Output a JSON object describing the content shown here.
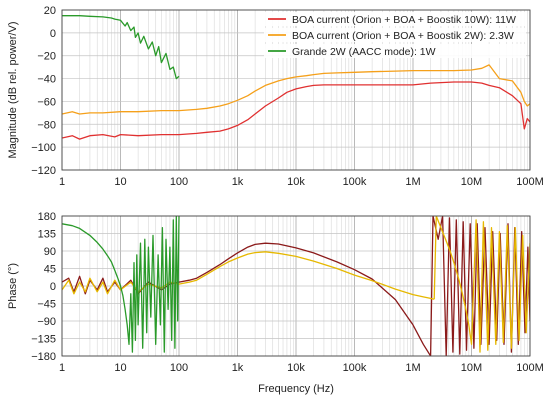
{
  "chart_data": [
    {
      "type": "line",
      "title": "",
      "xlabel": "",
      "ylabel": "Magnitude (dB rel. power/V)",
      "xscale": "log",
      "xlim": [
        1,
        100000000
      ],
      "ylim": [
        -120,
        20
      ],
      "xticks": [
        1,
        10,
        100,
        1000,
        10000,
        100000,
        1000000,
        10000000,
        100000000
      ],
      "xtick_labels": [
        "1",
        "10",
        "100",
        "1k",
        "10k",
        "100k",
        "1M",
        "10M",
        "100M"
      ],
      "yticks": [
        20,
        0,
        -20,
        -40,
        -60,
        -80,
        -100,
        -120
      ],
      "ytick_labels": [
        "20",
        "0",
        "−20",
        "−40",
        "−60",
        "−80",
        "−100",
        "−120"
      ],
      "grid": true,
      "legend_position": "top-right",
      "series": [
        {
          "name": "BOA current (Orion + BOA + Boostik 10W): 11W",
          "color": "#e03030",
          "x": [
            1,
            1.5,
            2,
            3,
            5,
            8,
            10,
            20,
            50,
            100,
            200,
            300,
            500,
            700,
            1000,
            1500,
            2000,
            3000,
            5000,
            7000,
            10000,
            15000,
            20000,
            30000,
            50000,
            100000,
            200000,
            500000,
            1000000,
            2000000,
            5000000,
            10000000,
            15000000,
            20000000,
            30000000,
            50000000,
            70000000,
            80000000,
            90000000,
            100000000
          ],
          "y": [
            -92,
            -90,
            -93,
            -90,
            -89,
            -91,
            -89,
            -90,
            -89,
            -89,
            -88,
            -87,
            -86,
            -84,
            -81,
            -76,
            -71,
            -64,
            -57,
            -52,
            -49,
            -47,
            -46,
            -45.5,
            -45.5,
            -45.5,
            -45.5,
            -45.5,
            -45.5,
            -44,
            -43,
            -43,
            -44,
            -46,
            -48,
            -55,
            -62,
            -84,
            -75,
            -78
          ]
        },
        {
          "name": "BOA current (Orion + BOA + Boostik 2W): 2.3W",
          "color": "#f5a01a",
          "x": [
            1,
            1.5,
            2,
            3,
            5,
            10,
            20,
            50,
            100,
            200,
            300,
            500,
            700,
            1000,
            1500,
            2000,
            3000,
            5000,
            7000,
            10000,
            15000,
            20000,
            30000,
            50000,
            100000,
            200000,
            500000,
            1000000,
            2000000,
            5000000,
            10000000,
            15000000,
            20000000,
            30000000,
            50000000,
            70000000,
            80000000,
            90000000,
            100000000
          ],
          "y": [
            -71,
            -69,
            -71,
            -70,
            -70,
            -69,
            -69,
            -68,
            -68,
            -67,
            -66,
            -64,
            -62,
            -59,
            -55,
            -51,
            -46,
            -42,
            -40,
            -38.5,
            -37.5,
            -36.5,
            -35.5,
            -35,
            -34.5,
            -34,
            -33.5,
            -33,
            -33,
            -33,
            -32.5,
            -31,
            -28,
            -40,
            -42,
            -52,
            -60,
            -64,
            -62
          ]
        },
        {
          "name": "Grande 2W (AACC mode): 1W",
          "color": "#2a9a2a",
          "x": [
            1,
            1.5,
            2,
            3,
            5,
            7,
            8,
            10,
            12,
            13,
            15,
            17,
            18,
            20,
            22,
            25,
            30,
            35,
            40,
            45,
            50,
            60,
            70,
            80,
            90,
            100
          ],
          "y": [
            15,
            15,
            15,
            14.5,
            14,
            13,
            12,
            11,
            6,
            9,
            2,
            5,
            -4,
            0,
            -9,
            -3,
            -14,
            -8,
            -20,
            -12,
            -26,
            -18,
            -32,
            -30,
            -40,
            -38
          ]
        }
      ]
    },
    {
      "type": "line",
      "title": "",
      "xlabel": "Frequency (Hz)",
      "ylabel": "Phase (°)",
      "xscale": "log",
      "xlim": [
        1,
        100000000
      ],
      "ylim": [
        -180,
        180
      ],
      "xticks": [
        1,
        10,
        100,
        1000,
        10000,
        100000,
        1000000,
        10000000,
        100000000
      ],
      "xtick_labels": [
        "1",
        "10",
        "100",
        "1k",
        "10k",
        "100k",
        "1M",
        "10M",
        "100M"
      ],
      "yticks": [
        180,
        135,
        90,
        45,
        0,
        -45,
        -90,
        -135,
        -180
      ],
      "ytick_labels": [
        "180",
        "135",
        "90",
        "45",
        "0",
        "−45",
        "−90",
        "−135",
        "−180"
      ],
      "grid": true,
      "legend_position": "none",
      "series": [
        {
          "color": "#8b1a1a",
          "x": [
            1,
            1.3,
            1.6,
            2,
            2.5,
            3,
            4,
            5,
            6,
            8,
            10,
            15,
            20,
            30,
            50,
            70,
            100,
            150,
            200,
            300,
            500,
            700,
            1000,
            1500,
            2000,
            3000,
            5000,
            10000,
            20000,
            50000,
            100000,
            200000,
            500000,
            1000000,
            1500000,
            2000000
          ],
          "y": [
            10,
            20,
            -15,
            25,
            -20,
            15,
            -10,
            20,
            -15,
            10,
            -10,
            15,
            -20,
            10,
            -10,
            5,
            10,
            15,
            20,
            35,
            55,
            70,
            85,
            100,
            107,
            110,
            108,
            98,
            85,
            62,
            42,
            18,
            -35,
            -100,
            -150,
            -180
          ]
        },
        {
          "color": "#8b1a1a",
          "x": [
            2000000,
            2200000,
            2700000,
            3200000,
            3700000,
            4200000,
            4800000,
            5500000,
            6300000,
            7200000,
            8200000,
            9500000,
            11000000,
            12500000,
            14500000,
            17000000,
            20000000,
            23000000,
            27000000,
            31000000,
            36000000,
            42000000,
            48000000,
            55000000,
            63000000,
            72000000,
            82000000,
            92000000,
            100000000
          ],
          "y": [
            -180,
            180,
            120,
            180,
            -180,
            175,
            -170,
            170,
            -175,
            165,
            -165,
            160,
            -160,
            160,
            -150,
            150,
            -150,
            140,
            -140,
            135,
            -150,
            160,
            -170,
            150,
            -150,
            140,
            -120,
            100,
            -90
          ]
        },
        {
          "color": "#e6b800",
          "x": [
            1,
            1.3,
            1.6,
            2,
            2.5,
            3,
            4,
            5,
            6,
            8,
            10,
            15,
            20,
            30,
            50,
            70,
            100,
            150,
            200,
            300,
            500,
            700,
            1000,
            1500,
            2000,
            3000,
            5000,
            10000,
            20000,
            50000,
            100000,
            200000,
            500000,
            1000000,
            1500000,
            2000000,
            2300000
          ],
          "y": [
            -10,
            15,
            -20,
            10,
            -15,
            20,
            -15,
            10,
            -20,
            15,
            -10,
            10,
            -15,
            5,
            -5,
            10,
            5,
            10,
            15,
            30,
            50,
            62,
            72,
            82,
            86,
            88,
            84,
            76,
            64,
            45,
            28,
            14,
            -8,
            -22,
            -28,
            -32,
            -34
          ]
        },
        {
          "color": "#e6b800",
          "x": [
            2300000,
            2500000,
            3000000,
            3600000,
            4300000,
            5000000,
            6000000,
            7000000,
            8000000,
            9000000,
            10000000,
            12000000,
            14000000,
            16000000,
            19000000,
            22000000,
            26000000,
            30000000,
            35000000,
            41000000,
            48000000,
            56000000,
            65000000,
            75000000,
            86000000,
            100000000
          ],
          "y": [
            -34,
            180,
            150,
            120,
            90,
            60,
            20,
            -20,
            -60,
            -100,
            -150,
            170,
            -170,
            165,
            -165,
            150,
            -150,
            140,
            -145,
            155,
            -160,
            150,
            -140,
            130,
            -120,
            110
          ]
        },
        {
          "color": "#2a9a2a",
          "x": [
            1,
            1.5,
            2,
            3,
            4,
            5,
            6,
            7,
            8,
            9,
            10,
            11,
            12,
            13,
            14,
            15,
            16,
            17,
            18,
            19,
            20,
            22,
            24,
            26,
            28,
            30,
            33,
            36,
            40,
            44,
            48,
            52,
            56,
            60,
            65,
            70,
            75,
            80,
            85,
            90,
            95,
            100
          ],
          "y": [
            160,
            155,
            148,
            130,
            112,
            95,
            78,
            62,
            40,
            20,
            0,
            -25,
            -60,
            -100,
            -150,
            -20,
            -170,
            60,
            -140,
            80,
            -100,
            110,
            -160,
            120,
            -120,
            100,
            -80,
            130,
            -150,
            80,
            -100,
            150,
            -170,
            120,
            -60,
            100,
            -140,
            170,
            -160,
            180,
            -90,
            180
          ]
        }
      ]
    }
  ]
}
